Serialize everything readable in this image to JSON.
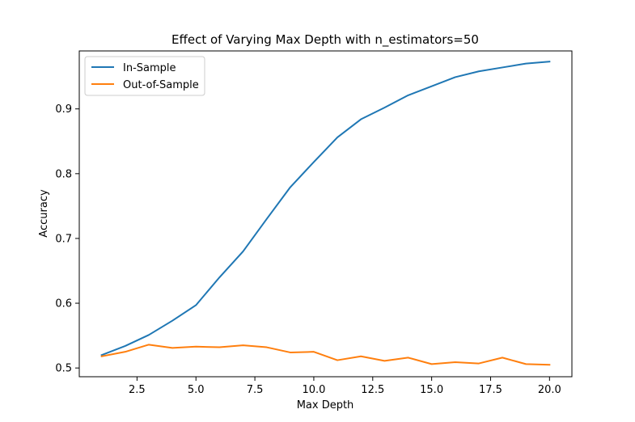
{
  "chart_data": {
    "type": "line",
    "title": "Effect of Varying Max Depth with n_estimators=50",
    "xlabel": "Max Depth",
    "ylabel": "Accuracy",
    "xlim": [
      0.05,
      20.95
    ],
    "ylim": [
      0.4865,
      0.9895
    ],
    "xticks": [
      2.5,
      5.0,
      7.5,
      10.0,
      12.5,
      15.0,
      17.5,
      20.0
    ],
    "xtick_labels": [
      "2.5",
      "5.0",
      "7.5",
      "10.0",
      "12.5",
      "15.0",
      "17.5",
      "20.0"
    ],
    "yticks": [
      0.5,
      0.6,
      0.7,
      0.8,
      0.9
    ],
    "ytick_labels": [
      "0.5",
      "0.6",
      "0.7",
      "0.8",
      "0.9"
    ],
    "grid": false,
    "legend_position": "upper-left",
    "x": [
      1,
      2,
      3,
      4,
      5,
      6,
      7,
      8,
      9,
      10,
      11,
      12,
      13,
      14,
      15,
      16,
      17,
      18,
      19,
      20
    ],
    "series": [
      {
        "name": "In-Sample",
        "color": "#1f77b4",
        "values": [
          0.52,
          0.534,
          0.551,
          0.573,
          0.597,
          0.64,
          0.68,
          0.73,
          0.779,
          0.818,
          0.856,
          0.884,
          0.902,
          0.921,
          0.935,
          0.949,
          0.958,
          0.964,
          0.97,
          0.973
        ]
      },
      {
        "name": "Out-of-Sample",
        "color": "#ff7f0e",
        "values": [
          0.518,
          0.525,
          0.536,
          0.531,
          0.533,
          0.532,
          0.535,
          0.532,
          0.524,
          0.525,
          0.512,
          0.518,
          0.511,
          0.516,
          0.506,
          0.509,
          0.507,
          0.516,
          0.506,
          0.505
        ]
      }
    ]
  }
}
